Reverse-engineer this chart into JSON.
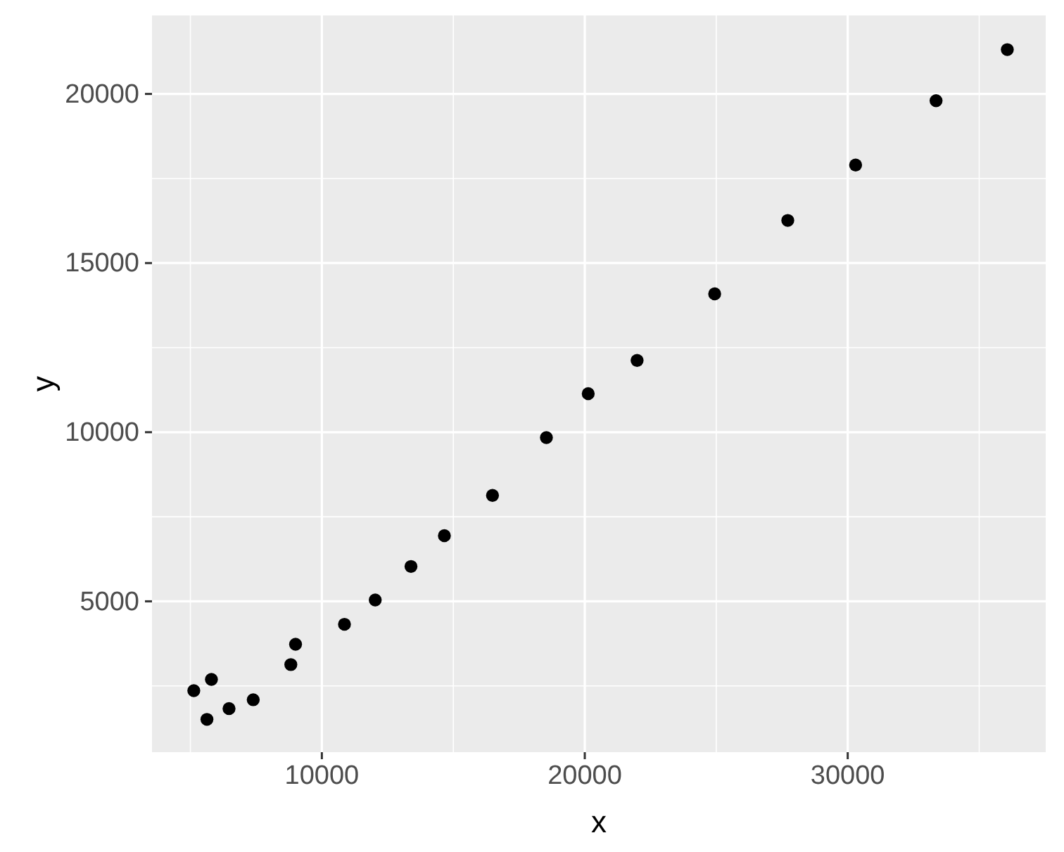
{
  "chart_data": {
    "type": "scatter",
    "xlabel": "x",
    "ylabel": "y",
    "x": [
      5130,
      5800,
      5630,
      6470,
      7390,
      8820,
      9000,
      10860,
      12030,
      13390,
      14660,
      16490,
      18540,
      20130,
      21990,
      24940,
      27720,
      30300,
      33360,
      36070
    ],
    "series": [
      {
        "color": "#000000",
        "values": [
          2360,
          2690,
          1510,
          1830,
          2090,
          3130,
          3730,
          4320,
          5040,
          6030,
          6940,
          8130,
          9840,
          11140,
          12120,
          14090,
          16260,
          17900,
          19800,
          21310
        ]
      }
    ],
    "xlim": [
      3540,
      37530
    ],
    "ylim": [
      540,
      22320
    ],
    "xticks": [
      10000,
      20000,
      30000
    ],
    "yticks": [
      5000,
      10000,
      15000,
      20000
    ],
    "grid": true,
    "marker": "circle"
  }
}
